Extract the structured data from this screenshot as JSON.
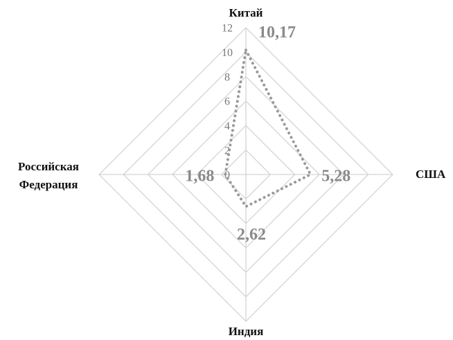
{
  "chart_data": {
    "type": "radar",
    "categories": [
      "Китай",
      "США",
      "Индия",
      "Российская Федерация"
    ],
    "series": [
      {
        "color": "#999999",
        "values": [
          10.17,
          5.28,
          2.62,
          1.68
        ],
        "value_labels": [
          "10,17",
          "5,28",
          "2,62",
          "1,68"
        ]
      }
    ],
    "ylim": [
      0,
      12
    ],
    "yticks": [
      0,
      2,
      4,
      6,
      8,
      10,
      12
    ],
    "grid": true
  }
}
